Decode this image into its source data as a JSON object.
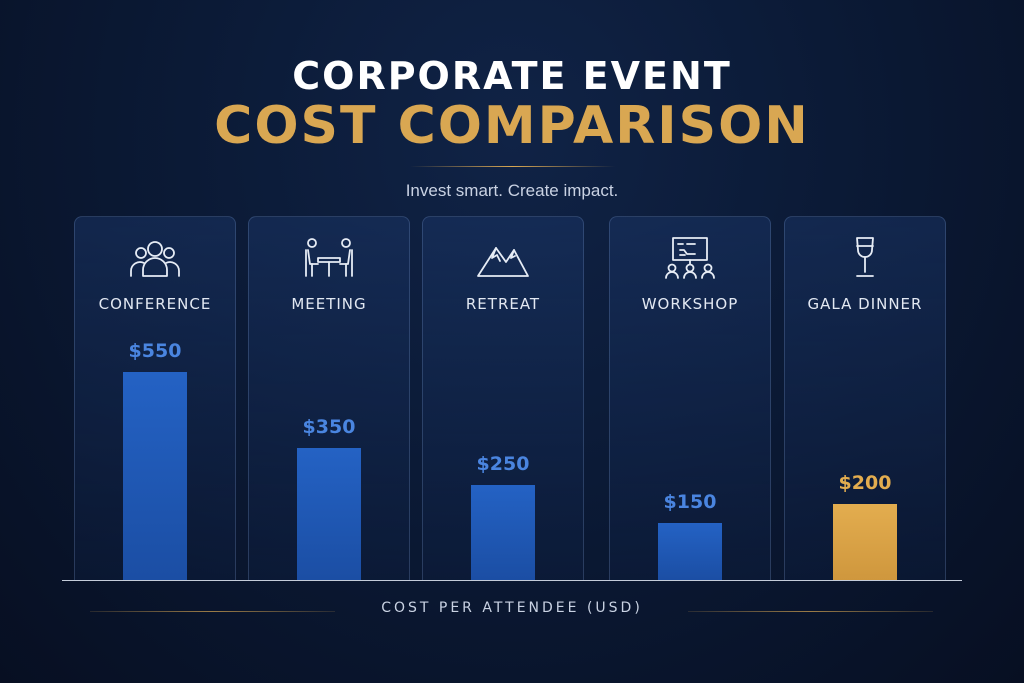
{
  "header": {
    "title_line1": "CORPORATE EVENT",
    "title_line2": "COST COMPARISON",
    "subtitle": "Invest smart. Create impact."
  },
  "colors": {
    "background": "#0b1a36",
    "accent_gold": "#d9a752",
    "bar_blue": "#2462c4",
    "label_blue": "#4a85e0"
  },
  "chart_data": {
    "type": "bar",
    "title": "CORPORATE EVENT COST COMPARISON",
    "subtitle": "Invest smart. Create impact.",
    "categories": [
      "CONFERENCE",
      "MEETING",
      "RETREAT",
      "WORKSHOP",
      "GALA DINNER"
    ],
    "values": [
      550,
      350,
      250,
      150,
      200
    ],
    "value_labels": [
      "$550",
      "$350",
      "$250",
      "$150",
      "$200"
    ],
    "icons": [
      "people-group-icon",
      "meeting-table-icon",
      "mountains-icon",
      "presentation-board-icon",
      "wine-glass-icon"
    ],
    "highlight_colors": [
      "#2462c4",
      "#2462c4",
      "#2462c4",
      "#2462c4",
      "#d9a752"
    ],
    "xlabel": "COST PER ATTENDEE (USD)",
    "ylabel": "",
    "ylim": [
      0,
      550
    ],
    "grid": false,
    "legend": "none"
  }
}
